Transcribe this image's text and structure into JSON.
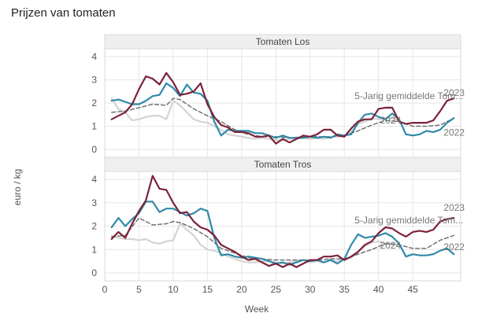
{
  "title": "Prijzen van tomaten",
  "ylabel": "euro / kg",
  "xlabel": "Week",
  "colors": {
    "y2023": "#7b2238",
    "y2022": "#2f8aa8",
    "y2024": "#d4d4d4",
    "avg": "#6a6a6a",
    "grid": "#e6e6e6",
    "strip": "#efefef"
  },
  "chart_data": [
    {
      "type": "line",
      "panel_title": "Tomaten Los",
      "xlim": [
        0,
        52
      ],
      "ylim": [
        0,
        4
      ],
      "yticks": [
        "0",
        "1",
        "2",
        "3",
        "4"
      ],
      "xticks": [
        "0",
        "5",
        "10",
        "15",
        "20",
        "25",
        "30",
        "35",
        "40",
        "45"
      ],
      "series": [
        {
          "name": "2023",
          "key": "y2023",
          "dash": false,
          "x": [
            1,
            2,
            3,
            4,
            5,
            6,
            7,
            8,
            9,
            10,
            11,
            12,
            13,
            14,
            15,
            16,
            17,
            18,
            19,
            20,
            21,
            22,
            23,
            24,
            25,
            26,
            27,
            28,
            29,
            30,
            31,
            32,
            33,
            34,
            35,
            36,
            37,
            38,
            39,
            40,
            41,
            42,
            43,
            44,
            45,
            46,
            47,
            48,
            49,
            50,
            51
          ],
          "y": [
            1.3,
            1.45,
            1.6,
            1.95,
            2.6,
            3.15,
            3.05,
            2.8,
            3.3,
            2.9,
            2.35,
            2.4,
            2.5,
            2.85,
            1.95,
            1.4,
            1.05,
            0.95,
            0.75,
            0.75,
            0.7,
            0.55,
            0.55,
            0.6,
            0.25,
            0.45,
            0.3,
            0.45,
            0.6,
            0.55,
            0.65,
            0.85,
            0.85,
            0.6,
            0.55,
            0.9,
            1.2,
            1.3,
            1.3,
            1.75,
            1.8,
            1.8,
            1.2,
            1.1,
            1.15,
            1.15,
            1.15,
            1.25,
            1.65,
            2.1,
            2.2
          ]
        },
        {
          "name": "2022",
          "key": "y2022",
          "dash": false,
          "x": [
            1,
            2,
            3,
            4,
            5,
            6,
            7,
            8,
            9,
            10,
            11,
            12,
            13,
            14,
            15,
            16,
            17,
            18,
            19,
            20,
            21,
            22,
            23,
            24,
            25,
            26,
            27,
            28,
            29,
            30,
            31,
            32,
            33,
            34,
            35,
            36,
            37,
            38,
            39,
            40,
            41,
            42,
            43,
            44,
            45,
            46,
            47,
            48,
            49,
            50,
            51
          ],
          "y": [
            2.1,
            2.15,
            2.05,
            1.95,
            1.95,
            2.1,
            2.3,
            2.35,
            2.85,
            2.65,
            2.3,
            2.8,
            2.45,
            2.4,
            2.1,
            1.2,
            0.6,
            0.85,
            0.8,
            0.8,
            0.8,
            0.7,
            0.7,
            0.6,
            0.5,
            0.6,
            0.5,
            0.5,
            0.5,
            0.55,
            0.5,
            0.55,
            0.5,
            0.65,
            0.6,
            0.65,
            1.15,
            1.5,
            1.55,
            1.4,
            1.3,
            1.55,
            1.3,
            0.65,
            0.6,
            0.65,
            0.8,
            0.75,
            0.85,
            1.15,
            1.35
          ]
        },
        {
          "name": "2024",
          "key": "y2024",
          "dash": false,
          "x": [
            1,
            2,
            3,
            4,
            5,
            6,
            7,
            8,
            9,
            10,
            11,
            12,
            13,
            14,
            15,
            16,
            17,
            18,
            19,
            20,
            21,
            22,
            23,
            24,
            25,
            26,
            27,
            28,
            29,
            30,
            31,
            32,
            33,
            34,
            35,
            36,
            37,
            38,
            39,
            40,
            41,
            42,
            43
          ],
          "y": [
            2.2,
            1.75,
            1.6,
            1.25,
            1.3,
            1.4,
            1.45,
            1.45,
            1.3,
            2.1,
            1.9,
            1.6,
            1.3,
            1.2,
            1.15,
            1.0,
            0.85,
            0.65,
            0.6,
            0.55,
            0.5,
            0.45,
            0.5,
            0.45,
            0.4,
            0.4,
            0.45,
            0.45,
            0.5,
            0.45,
            0.5,
            0.45,
            0.55,
            0.55,
            0.6,
            0.75,
            1.1,
            1.2,
            1.35,
            1.3,
            1.35,
            1.35,
            1.3
          ]
        },
        {
          "name": "5-Jarig gemiddelde Tom...",
          "key": "avg",
          "dash": true,
          "x": [
            1,
            3,
            5,
            7,
            9,
            10,
            11,
            13,
            15,
            17,
            19,
            21,
            23,
            25,
            27,
            29,
            31,
            33,
            35,
            37,
            39,
            41,
            43,
            45,
            47,
            49,
            51
          ],
          "y": [
            1.6,
            1.65,
            1.8,
            1.95,
            1.9,
            2.2,
            2.15,
            1.75,
            1.45,
            1.2,
            0.85,
            0.65,
            0.55,
            0.55,
            0.5,
            0.55,
            0.55,
            0.55,
            0.6,
            0.8,
            1.05,
            1.25,
            1.2,
            1.0,
            1.0,
            1.05,
            1.35
          ]
        }
      ],
      "annotations": [
        {
          "text": "5-Jarig gemiddelde Tom...",
          "x": 36.5,
          "y": 2.17
        },
        {
          "text": "2023",
          "x": 49.5,
          "y": 2.3
        },
        {
          "text": "2024",
          "x": 40.2,
          "y": 1.12
        },
        {
          "text": "2022",
          "x": 49.5,
          "y": 0.6
        }
      ]
    },
    {
      "type": "line",
      "panel_title": "Tomaten Tros",
      "xlim": [
        0,
        52
      ],
      "ylim": [
        0,
        4
      ],
      "yticks": [
        "0",
        "1",
        "2",
        "3",
        "4"
      ],
      "xticks": [
        "0",
        "5",
        "10",
        "15",
        "20",
        "25",
        "30",
        "35",
        "40",
        "45"
      ],
      "series": [
        {
          "name": "2023",
          "key": "y2023",
          "dash": false,
          "x": [
            1,
            2,
            3,
            4,
            5,
            6,
            7,
            8,
            9,
            10,
            11,
            12,
            13,
            14,
            15,
            16,
            17,
            18,
            19,
            20,
            21,
            22,
            23,
            24,
            25,
            26,
            27,
            28,
            29,
            30,
            31,
            32,
            33,
            34,
            35,
            36,
            37,
            38,
            39,
            40,
            41,
            42,
            43,
            44,
            45,
            46,
            47,
            48,
            49,
            50,
            51
          ],
          "y": [
            1.45,
            1.75,
            1.5,
            2.1,
            2.65,
            3.1,
            4.15,
            3.6,
            3.55,
            3.0,
            2.55,
            2.6,
            2.2,
            1.95,
            1.85,
            1.6,
            1.2,
            1.05,
            0.9,
            0.7,
            0.55,
            0.6,
            0.45,
            0.3,
            0.4,
            0.25,
            0.4,
            0.25,
            0.4,
            0.55,
            0.55,
            0.7,
            0.7,
            0.75,
            0.55,
            0.7,
            0.9,
            1.2,
            1.35,
            1.7,
            1.95,
            1.9,
            1.7,
            1.55,
            1.75,
            1.8,
            1.75,
            1.85,
            2.2,
            2.3,
            2.35
          ]
        },
        {
          "name": "2022",
          "key": "y2022",
          "dash": false,
          "x": [
            1,
            2,
            3,
            4,
            5,
            6,
            7,
            8,
            9,
            10,
            11,
            12,
            13,
            14,
            15,
            16,
            17,
            18,
            19,
            20,
            21,
            22,
            23,
            24,
            25,
            26,
            27,
            28,
            29,
            30,
            31,
            32,
            33,
            34,
            35,
            36,
            37,
            38,
            39,
            40,
            41,
            42,
            43,
            44,
            45,
            46,
            47,
            48,
            49,
            50,
            51
          ],
          "y": [
            1.95,
            2.35,
            2.0,
            2.3,
            2.55,
            3.05,
            3.05,
            2.6,
            2.75,
            2.75,
            2.6,
            2.45,
            2.55,
            2.75,
            2.65,
            1.5,
            0.75,
            0.8,
            0.7,
            0.65,
            0.7,
            0.65,
            0.6,
            0.5,
            0.4,
            0.45,
            0.35,
            0.45,
            0.55,
            0.5,
            0.55,
            0.45,
            0.55,
            0.4,
            0.6,
            1.2,
            1.65,
            1.5,
            1.55,
            1.6,
            1.7,
            1.55,
            1.25,
            0.7,
            0.8,
            0.75,
            0.75,
            0.8,
            0.95,
            1.05,
            0.8
          ]
        },
        {
          "name": "2024",
          "key": "y2024",
          "dash": false,
          "x": [
            1,
            2,
            3,
            4,
            5,
            6,
            7,
            8,
            9,
            10,
            11,
            12,
            13,
            14,
            15,
            16,
            17,
            18,
            19,
            20,
            21,
            22,
            23,
            24,
            25,
            26,
            27,
            28,
            29,
            30,
            31,
            32,
            33,
            34,
            35,
            36,
            37,
            38,
            39,
            40,
            41,
            42,
            43
          ],
          "y": [
            1.6,
            1.5,
            1.45,
            1.45,
            1.4,
            1.45,
            1.3,
            1.25,
            1.35,
            1.4,
            2.1,
            1.85,
            1.6,
            1.2,
            1.0,
            0.95,
            0.85,
            0.7,
            0.6,
            0.5,
            0.45,
            0.45,
            0.5,
            0.5,
            0.45,
            0.4,
            0.45,
            0.5,
            0.55,
            0.45,
            0.5,
            0.45,
            0.55,
            0.5,
            0.6,
            0.65,
            0.9,
            1.15,
            1.3,
            1.35,
            1.25,
            1.25,
            1.2
          ]
        },
        {
          "name": "5-Jarig gemiddelde Tom...",
          "key": "avg",
          "dash": true,
          "x": [
            1,
            3,
            5,
            7,
            9,
            10,
            11,
            13,
            15,
            17,
            19,
            21,
            23,
            25,
            27,
            29,
            31,
            33,
            35,
            37,
            39,
            41,
            43,
            45,
            47,
            49,
            51
          ],
          "y": [
            1.55,
            1.6,
            2.35,
            2.05,
            2.1,
            2.2,
            2.15,
            1.9,
            1.55,
            1.05,
            0.85,
            0.65,
            0.6,
            0.55,
            0.55,
            0.55,
            0.55,
            0.6,
            0.6,
            0.8,
            1.0,
            1.25,
            1.2,
            1.05,
            1.05,
            1.4,
            1.6
          ]
        }
      ],
      "annotations": [
        {
          "text": "5-Jarig gemiddelde Tom...",
          "x": 36.5,
          "y": 2.12
        },
        {
          "text": "2023",
          "x": 49.5,
          "y": 2.65
        },
        {
          "text": "2024",
          "x": 40.2,
          "y": 1.05
        },
        {
          "text": "2022",
          "x": 49.5,
          "y": 0.98
        }
      ]
    }
  ]
}
